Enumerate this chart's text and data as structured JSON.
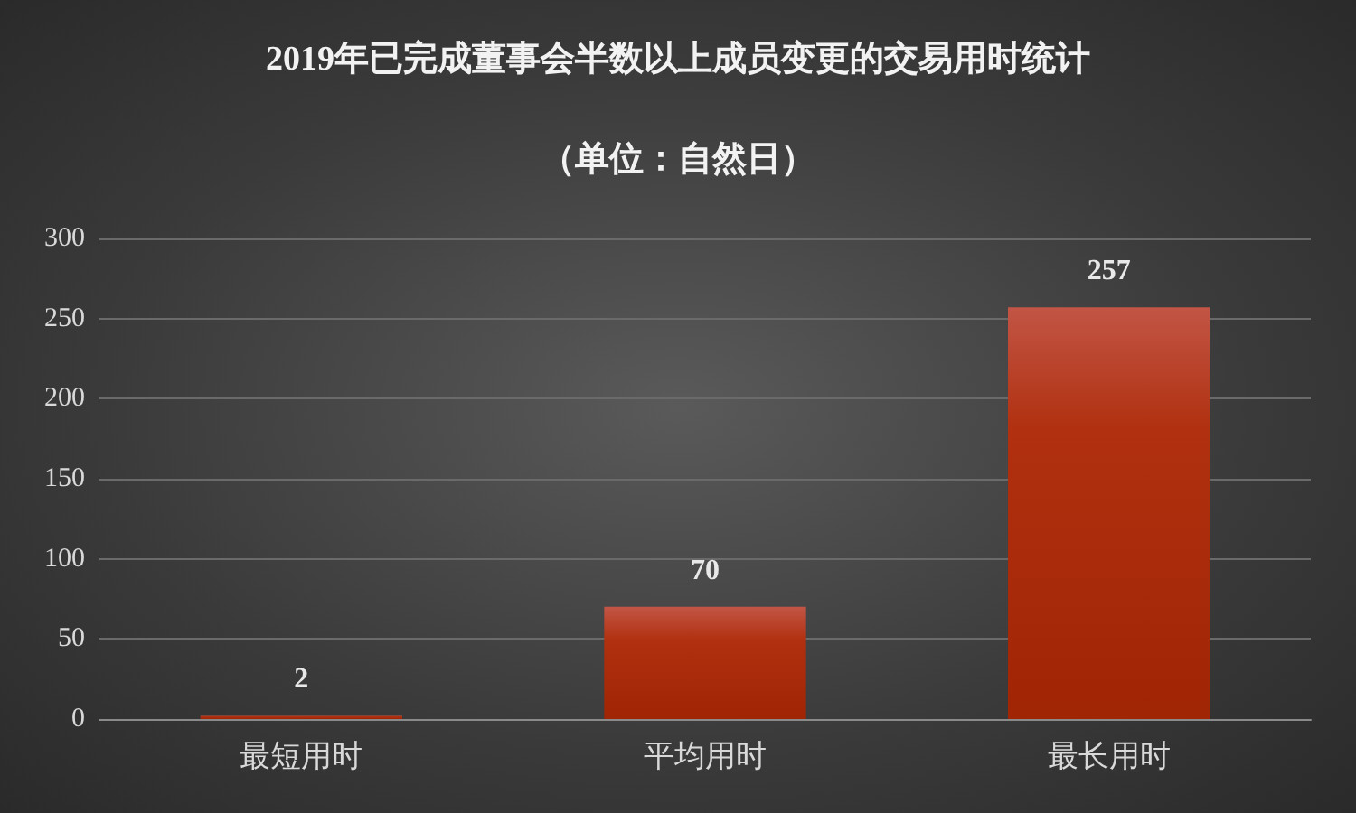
{
  "chart_data": {
    "type": "bar",
    "title": "2019年已完成董事会半数以上成员变更的交易用时统计",
    "subtitle": "（单位：自然日）",
    "categories": [
      "最短用时",
      "平均用时",
      "最长用时"
    ],
    "values": [
      2,
      70,
      257
    ],
    "color": "#b0300f",
    "ylim": [
      0,
      300
    ],
    "yticks": [
      0,
      50,
      100,
      150,
      200,
      250,
      300
    ],
    "grid": "y",
    "data_labels": true
  }
}
